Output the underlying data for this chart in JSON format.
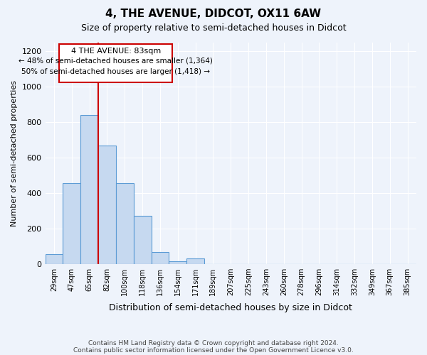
{
  "title": "4, THE AVENUE, DIDCOT, OX11 6AW",
  "subtitle": "Size of property relative to semi-detached houses in Didcot",
  "xlabel": "Distribution of semi-detached houses by size in Didcot",
  "ylabel": "Number of semi-detached properties",
  "footnote1": "Contains HM Land Registry data © Crown copyright and database right 2024.",
  "footnote2": "Contains public sector information licensed under the Open Government Licence v3.0.",
  "bin_labels": [
    "29sqm",
    "47sqm",
    "65sqm",
    "82sqm",
    "100sqm",
    "118sqm",
    "136sqm",
    "154sqm",
    "171sqm",
    "189sqm",
    "207sqm",
    "225sqm",
    "243sqm",
    "260sqm",
    "278sqm",
    "296sqm",
    "314sqm",
    "332sqm",
    "349sqm",
    "367sqm",
    "385sqm"
  ],
  "bar_values": [
    55,
    455,
    840,
    670,
    455,
    270,
    65,
    15,
    30,
    0,
    0,
    0,
    0,
    0,
    0,
    0,
    0,
    0,
    0,
    0,
    0
  ],
  "bar_color": "#c6d9f0",
  "bar_edge_color": "#5b9bd5",
  "property_line_bin": 3,
  "property_line_label": "4 THE AVENUE: 83sqm",
  "smaller_pct": "48%",
  "smaller_count": "1,364",
  "larger_pct": "50%",
  "larger_count": "1,418",
  "annotation_box_color": "#ffffff",
  "annotation_box_edge": "#cc0000",
  "line_color": "#cc0000",
  "ylim": [
    0,
    1250
  ],
  "yticks": [
    0,
    200,
    400,
    600,
    800,
    1000,
    1200
  ],
  "background_color": "#eef3fb"
}
